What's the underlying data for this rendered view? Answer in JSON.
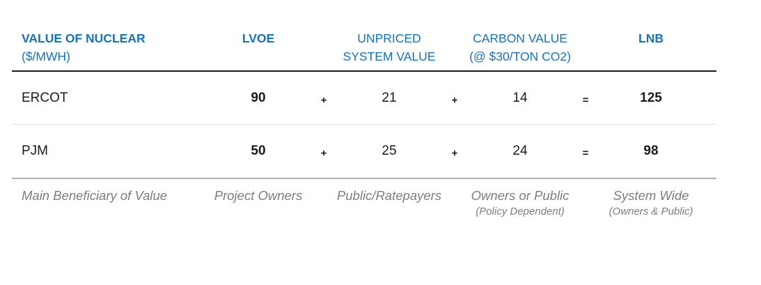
{
  "colors": {
    "accent_blue": "#1573B9",
    "text_black": "#1a1a1a",
    "muted_gray": "#7d7d7d",
    "header_rule": "#1a1a1a",
    "mid_rule": "#dcdcdc",
    "bottom_rule": "#b0b0b0"
  },
  "header": {
    "title_line1": "VALUE OF NUCLEAR",
    "title_line2": "($/MWH)",
    "col_lvoe": "LVOE",
    "col_unpriced_line1": "UNPRICED",
    "col_unpriced_line2": "SYSTEM VALUE",
    "col_carbon_line1": "CARBON VALUE",
    "col_carbon_line2": "(@ $30/TON CO2)",
    "col_lnb": "LNB"
  },
  "operators": {
    "plus": "+",
    "equals": "="
  },
  "rows": [
    {
      "label": "ERCOT",
      "lvoe": "90",
      "unpriced": "21",
      "carbon": "14",
      "lnb": "125"
    },
    {
      "label": "PJM",
      "lvoe": "50",
      "unpriced": "25",
      "carbon": "24",
      "lnb": "98"
    }
  ],
  "beneficiary": {
    "label": "Main Beneficiary of Value",
    "lvoe": "Project Owners",
    "unpriced": "Public/Ratepayers",
    "carbon": "Owners or Public",
    "carbon_note": "(Policy Dependent)",
    "lnb": "System Wide",
    "lnb_note": "(Owners & Public)"
  },
  "chart_data": {
    "type": "table",
    "title": "VALUE OF NUCLEAR ($/MWH)",
    "columns": [
      "LVOE",
      "UNPRICED SYSTEM VALUE",
      "CARBON VALUE (@ $30/TON CO2)",
      "LNB"
    ],
    "relation": "LVOE + UNPRICED SYSTEM VALUE + CARBON VALUE = LNB",
    "rows": [
      {
        "label": "ERCOT",
        "lvoe": 90,
        "unpriced_system_value": 21,
        "carbon_value": 14,
        "lnb": 125
      },
      {
        "label": "PJM",
        "lvoe": 50,
        "unpriced_system_value": 25,
        "carbon_value": 24,
        "lnb": 98
      }
    ],
    "main_beneficiary_of_value": [
      "Project Owners",
      "Public/Ratepayers",
      "Owners or Public (Policy Dependent)",
      "System Wide (Owners & Public)"
    ]
  }
}
